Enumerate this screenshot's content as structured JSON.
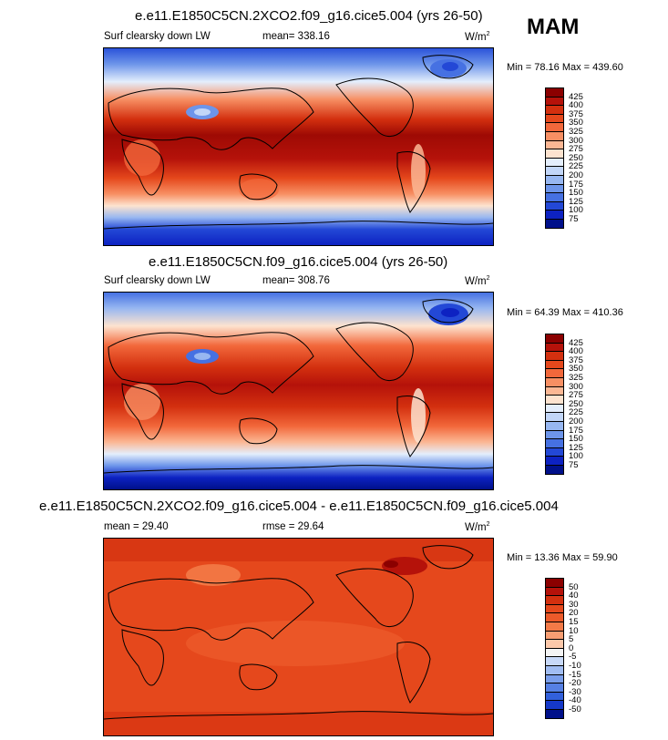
{
  "season": "MAM",
  "units_main": "W/m",
  "units_sup": "2",
  "panels": [
    {
      "title": "e.e11.E1850C5CN.2XCO2.f09_g16.cice5.004 (yrs 26-50)",
      "left_label": "Surf clearsky down LW",
      "stat_label": "mean= 338.16",
      "minmax": "Min = 78.16 Max = 439.60",
      "colorbar_labels": [
        "425",
        "400",
        "375",
        "350",
        "325",
        "300",
        "275",
        "250",
        "225",
        "200",
        "175",
        "150",
        "125",
        "100",
        "75"
      ]
    },
    {
      "title": "e.e11.E1850C5CN.f09_g16.cice5.004 (yrs 26-50)",
      "left_label": "Surf clearsky down LW",
      "stat_label": "mean= 308.76",
      "minmax": "Min = 64.39 Max = 410.36",
      "colorbar_labels": [
        "425",
        "400",
        "375",
        "350",
        "325",
        "300",
        "275",
        "250",
        "225",
        "200",
        "175",
        "150",
        "125",
        "100",
        "75"
      ]
    },
    {
      "title": "e.e11.E1850C5CN.2XCO2.f09_g16.cice5.004 - e.e11.E1850C5CN.f09_g16.cice5.004",
      "left_label": "mean =  29.40",
      "stat_label": "rmse =  29.64",
      "minmax": "Min =  13.36 Max =  59.90",
      "colorbar_labels": [
        "50",
        "40",
        "30",
        "20",
        "15",
        "10",
        "5",
        "0",
        "-5",
        "-10",
        "-15",
        "-20",
        "-30",
        "-40",
        "-50"
      ]
    }
  ],
  "colors": {
    "abs_scale": [
      "#8b0000",
      "#b5120a",
      "#d3300f",
      "#e5481c",
      "#f2683b",
      "#f78f63",
      "#fbb794",
      "#fde3cf",
      "#e4eefc",
      "#c2d6f8",
      "#97b7f1",
      "#6d95ea",
      "#4671e2",
      "#2348d6",
      "#0d22c2",
      "#00108a"
    ],
    "diff_scale": [
      "#8b0000",
      "#b5120a",
      "#d3300f",
      "#e5481c",
      "#ec5a2a",
      "#f37a47",
      "#f89e72",
      "#fcc8aa",
      "#f4f4f4",
      "#c8d9f8",
      "#a1bdf2",
      "#7a9eeb",
      "#5680e4",
      "#3260db",
      "#1538c8",
      "#00108a"
    ]
  },
  "chart_data": [
    {
      "type": "heatmap",
      "title": "e.e11.E1850C5CN.2XCO2.f09_g16.cice5.004 (yrs 26-50)",
      "variable": "Surf clearsky down LW",
      "units": "W/m2",
      "mean": 338.16,
      "min": 78.16,
      "max": 439.6,
      "contour_levels": [
        75,
        100,
        125,
        150,
        175,
        200,
        225,
        250,
        275,
        300,
        325,
        350,
        375,
        400,
        425
      ]
    },
    {
      "type": "heatmap",
      "title": "e.e11.E1850C5CN.f09_g16.cice5.004 (yrs 26-50)",
      "variable": "Surf clearsky down LW",
      "units": "W/m2",
      "mean": 308.76,
      "min": 64.39,
      "max": 410.36,
      "contour_levels": [
        75,
        100,
        125,
        150,
        175,
        200,
        225,
        250,
        275,
        300,
        325,
        350,
        375,
        400,
        425
      ]
    },
    {
      "type": "heatmap",
      "title": "e.e11.E1850C5CN.2XCO2.f09_g16.cice5.004 - e.e11.E1850C5CN.f09_g16.cice5.004",
      "units": "W/m2",
      "mean": 29.4,
      "rmse": 29.64,
      "min": 13.36,
      "max": 59.9,
      "contour_levels": [
        -50,
        -40,
        -30,
        -20,
        -15,
        -10,
        -5,
        0,
        5,
        10,
        15,
        20,
        30,
        40,
        50
      ]
    }
  ]
}
